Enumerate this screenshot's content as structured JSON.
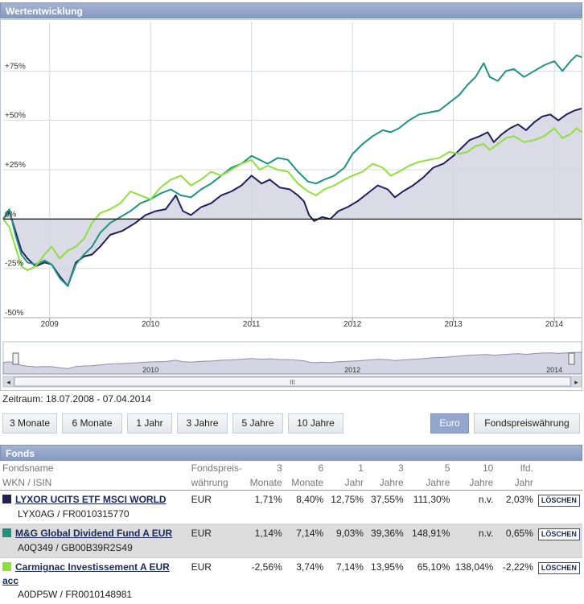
{
  "chart_panel": {
    "title": "Wertentwicklung"
  },
  "zeitraum": "Zeitraum: 18.07.2008 - 07.04.2014",
  "period_buttons": [
    "3 Monate",
    "6 Monate",
    "1 Jahr",
    "3 Jahre",
    "5 Jahre",
    "10 Jahre"
  ],
  "currency_buttons": {
    "euro": "Euro",
    "fund": "Fondspreiswährung"
  },
  "navigator": {
    "labels": [
      "2010",
      "2012",
      "2014"
    ],
    "scroll_grip": "III",
    "left_arrow": "◂",
    "right_arrow": "▸"
  },
  "chart_data": {
    "type": "line",
    "x_tick_labels": [
      "2009",
      "2010",
      "2011",
      "2012",
      "2013",
      "2014"
    ],
    "y_tick_labels": [
      "+75%",
      "+50%",
      "+25%",
      "0%",
      "-25%",
      "-50%"
    ],
    "ylim": [
      -50,
      100
    ],
    "xlim": [
      2008.54,
      2014.27
    ],
    "legend": "table below chart",
    "series": [
      {
        "name": "LYXOR UCITS ETF MSCI WORLD",
        "color": "#1f2157",
        "area_fill": true,
        "points": [
          [
            2008.54,
            0
          ],
          [
            2008.6,
            4
          ],
          [
            2008.66,
            -6
          ],
          [
            2008.72,
            -16
          ],
          [
            2008.78,
            -20
          ],
          [
            2008.86,
            -24
          ],
          [
            2008.95,
            -22
          ],
          [
            2009.02,
            -23
          ],
          [
            2009.1,
            -29
          ],
          [
            2009.18,
            -34
          ],
          [
            2009.26,
            -22
          ],
          [
            2009.34,
            -19
          ],
          [
            2009.42,
            -18
          ],
          [
            2009.5,
            -14
          ],
          [
            2009.6,
            -8
          ],
          [
            2009.72,
            -6
          ],
          [
            2009.85,
            -2
          ],
          [
            2009.95,
            2
          ],
          [
            2010.05,
            4
          ],
          [
            2010.15,
            5
          ],
          [
            2010.25,
            12
          ],
          [
            2010.32,
            4
          ],
          [
            2010.4,
            2
          ],
          [
            2010.5,
            6
          ],
          [
            2010.6,
            8
          ],
          [
            2010.7,
            12
          ],
          [
            2010.8,
            14
          ],
          [
            2010.9,
            17
          ],
          [
            2011.0,
            22
          ],
          [
            2011.1,
            18
          ],
          [
            2011.18,
            20
          ],
          [
            2011.28,
            16
          ],
          [
            2011.38,
            15
          ],
          [
            2011.46,
            12
          ],
          [
            2011.52,
            9
          ],
          [
            2011.57,
            2
          ],
          [
            2011.62,
            -1
          ],
          [
            2011.7,
            1
          ],
          [
            2011.78,
            0
          ],
          [
            2011.86,
            4
          ],
          [
            2011.95,
            6
          ],
          [
            2012.05,
            9
          ],
          [
            2012.15,
            13
          ],
          [
            2012.25,
            17
          ],
          [
            2012.35,
            15
          ],
          [
            2012.42,
            11
          ],
          [
            2012.5,
            14
          ],
          [
            2012.6,
            17
          ],
          [
            2012.7,
            21
          ],
          [
            2012.8,
            26
          ],
          [
            2012.9,
            28
          ],
          [
            2013.0,
            32
          ],
          [
            2013.08,
            36
          ],
          [
            2013.16,
            40
          ],
          [
            2013.26,
            42
          ],
          [
            2013.34,
            44
          ],
          [
            2013.4,
            39
          ],
          [
            2013.48,
            43
          ],
          [
            2013.56,
            46
          ],
          [
            2013.64,
            48
          ],
          [
            2013.72,
            45
          ],
          [
            2013.8,
            49
          ],
          [
            2013.88,
            52
          ],
          [
            2013.96,
            53
          ],
          [
            2014.04,
            50
          ],
          [
            2014.12,
            53
          ],
          [
            2014.2,
            55
          ],
          [
            2014.27,
            56
          ]
        ]
      },
      {
        "name": "M&G Global Dividend Fund A EUR",
        "color": "#1e9480",
        "area_fill": false,
        "points": [
          [
            2008.54,
            0
          ],
          [
            2008.6,
            5
          ],
          [
            2008.66,
            -8
          ],
          [
            2008.72,
            -18
          ],
          [
            2008.78,
            -22
          ],
          [
            2008.86,
            -23
          ],
          [
            2008.95,
            -21
          ],
          [
            2009.02,
            -23
          ],
          [
            2009.1,
            -30
          ],
          [
            2009.18,
            -34
          ],
          [
            2009.26,
            -23
          ],
          [
            2009.34,
            -18
          ],
          [
            2009.42,
            -14
          ],
          [
            2009.5,
            -7
          ],
          [
            2009.6,
            -2
          ],
          [
            2009.7,
            1
          ],
          [
            2009.8,
            4
          ],
          [
            2009.9,
            8
          ],
          [
            2010.0,
            10
          ],
          [
            2010.1,
            13
          ],
          [
            2010.2,
            15
          ],
          [
            2010.3,
            12
          ],
          [
            2010.4,
            11
          ],
          [
            2010.5,
            15
          ],
          [
            2010.6,
            18
          ],
          [
            2010.7,
            22
          ],
          [
            2010.8,
            26
          ],
          [
            2010.9,
            28
          ],
          [
            2011.0,
            32
          ],
          [
            2011.08,
            30
          ],
          [
            2011.16,
            28
          ],
          [
            2011.26,
            31
          ],
          [
            2011.36,
            30
          ],
          [
            2011.46,
            24
          ],
          [
            2011.56,
            19
          ],
          [
            2011.64,
            18
          ],
          [
            2011.72,
            20
          ],
          [
            2011.82,
            22
          ],
          [
            2011.92,
            26
          ],
          [
            2012.0,
            33
          ],
          [
            2012.1,
            38
          ],
          [
            2012.2,
            42
          ],
          [
            2012.3,
            45
          ],
          [
            2012.38,
            44
          ],
          [
            2012.46,
            46
          ],
          [
            2012.56,
            50
          ],
          [
            2012.66,
            53
          ],
          [
            2012.76,
            54
          ],
          [
            2012.86,
            55
          ],
          [
            2012.96,
            59
          ],
          [
            2013.06,
            63
          ],
          [
            2013.14,
            68
          ],
          [
            2013.22,
            72
          ],
          [
            2013.3,
            79
          ],
          [
            2013.36,
            72
          ],
          [
            2013.44,
            70
          ],
          [
            2013.52,
            75
          ],
          [
            2013.6,
            76
          ],
          [
            2013.7,
            72
          ],
          [
            2013.8,
            75
          ],
          [
            2013.9,
            78
          ],
          [
            2014.0,
            80
          ],
          [
            2014.08,
            75
          ],
          [
            2014.16,
            80
          ],
          [
            2014.22,
            83
          ],
          [
            2014.27,
            82
          ]
        ]
      },
      {
        "name": "Carmignac Investissement A EUR acc",
        "color": "#8ee03a",
        "area_fill": false,
        "points": [
          [
            2008.54,
            0
          ],
          [
            2008.6,
            -4
          ],
          [
            2008.66,
            -14
          ],
          [
            2008.72,
            -24
          ],
          [
            2008.78,
            -26
          ],
          [
            2008.86,
            -24
          ],
          [
            2008.95,
            -18
          ],
          [
            2009.02,
            -14
          ],
          [
            2009.1,
            -20
          ],
          [
            2009.18,
            -16
          ],
          [
            2009.26,
            -14
          ],
          [
            2009.34,
            -10
          ],
          [
            2009.42,
            -2
          ],
          [
            2009.5,
            3
          ],
          [
            2009.6,
            5
          ],
          [
            2009.7,
            8
          ],
          [
            2009.8,
            14
          ],
          [
            2009.9,
            12
          ],
          [
            2010.0,
            10
          ],
          [
            2010.1,
            16
          ],
          [
            2010.2,
            20
          ],
          [
            2010.3,
            22
          ],
          [
            2010.4,
            17
          ],
          [
            2010.5,
            20
          ],
          [
            2010.6,
            24
          ],
          [
            2010.7,
            22
          ],
          [
            2010.8,
            25
          ],
          [
            2010.9,
            28
          ],
          [
            2011.0,
            30
          ],
          [
            2011.08,
            25
          ],
          [
            2011.16,
            27
          ],
          [
            2011.26,
            25
          ],
          [
            2011.36,
            24
          ],
          [
            2011.46,
            18
          ],
          [
            2011.56,
            14
          ],
          [
            2011.64,
            12
          ],
          [
            2011.72,
            15
          ],
          [
            2011.82,
            17
          ],
          [
            2011.92,
            20
          ],
          [
            2012.0,
            22
          ],
          [
            2012.1,
            24
          ],
          [
            2012.2,
            28
          ],
          [
            2012.3,
            26
          ],
          [
            2012.38,
            22
          ],
          [
            2012.46,
            24
          ],
          [
            2012.56,
            27
          ],
          [
            2012.66,
            29
          ],
          [
            2012.76,
            30
          ],
          [
            2012.86,
            31
          ],
          [
            2012.96,
            34
          ],
          [
            2013.06,
            33
          ],
          [
            2013.14,
            34
          ],
          [
            2013.22,
            37
          ],
          [
            2013.3,
            38
          ],
          [
            2013.36,
            35
          ],
          [
            2013.44,
            38
          ],
          [
            2013.52,
            41
          ],
          [
            2013.6,
            42
          ],
          [
            2013.7,
            39
          ],
          [
            2013.8,
            40
          ],
          [
            2013.9,
            42
          ],
          [
            2014.0,
            46
          ],
          [
            2014.08,
            41
          ],
          [
            2014.16,
            43
          ],
          [
            2014.22,
            46
          ],
          [
            2014.27,
            44
          ]
        ]
      }
    ]
  },
  "fonds_panel": {
    "title": "Fonds",
    "headers": {
      "name": [
        "Fondsname",
        "WKN / ISIN"
      ],
      "currency": [
        "Fondspreis-",
        "währung"
      ],
      "m3": [
        "3",
        "Monate"
      ],
      "m6": [
        "6",
        "Monate"
      ],
      "y1": [
        "1",
        "Jahr"
      ],
      "y3": [
        "3",
        "Jahre"
      ],
      "y5": [
        "5",
        "Jahre"
      ],
      "y10": [
        "10",
        "Jahre"
      ],
      "ytd": [
        "lfd.",
        "Jahr"
      ]
    },
    "delete_label": "LÖSCHEN",
    "funds": [
      {
        "name": "LYXOR UCITS ETF MSCI WORLD",
        "ids": "LYX0AG / FR0010315770",
        "color": "#1f2157",
        "currency": "EUR",
        "m3": "1,71%",
        "m6": "8,40%",
        "y1": "12,75%",
        "y3": "37,55%",
        "y5": "111,30%",
        "y10": "n.v.",
        "ytd": "2,03%"
      },
      {
        "name": "M&G Global Dividend Fund A EUR",
        "ids": "A0Q349 / GB00B39R2S49",
        "color": "#1e9480",
        "currency": "EUR",
        "m3": "1,14%",
        "m6": "7,14%",
        "y1": "9,03%",
        "y3": "39,36%",
        "y5": "148,91%",
        "y10": "n.v.",
        "ytd": "0,65%"
      },
      {
        "name": "Carmignac Investissement A EUR acc",
        "ids": "A0DP5W / FR0010148981",
        "color": "#8ee03a",
        "currency": "EUR",
        "m3": "-2,56%",
        "m6": "3,74%",
        "y1": "7,14%",
        "y3": "13,95%",
        "y5": "65,10%",
        "y10": "138,04%",
        "ytd": "-2,22%"
      }
    ]
  }
}
